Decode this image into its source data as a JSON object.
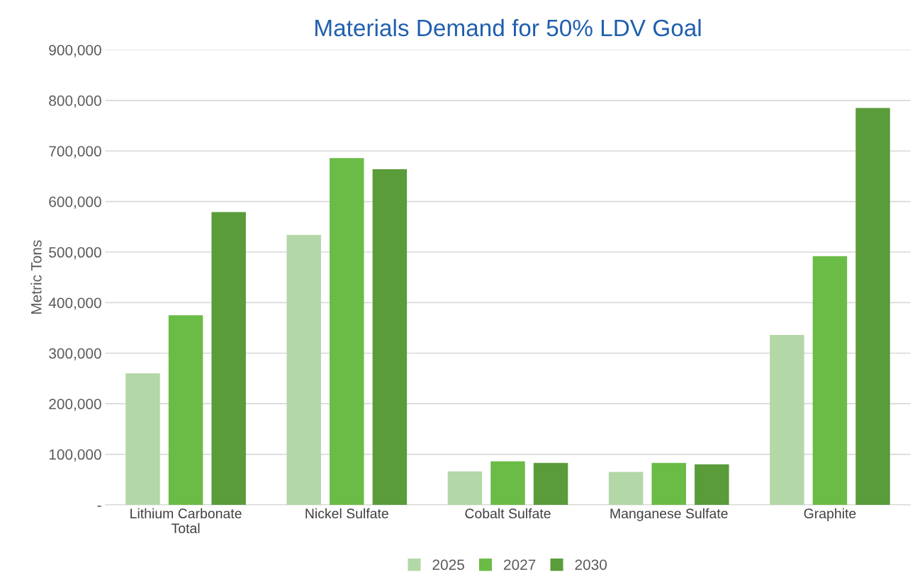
{
  "chart_data": {
    "type": "bar",
    "title": "Materials Demand for 50% LDV Goal",
    "ylabel": "Metric Tons",
    "categories": [
      "Lithium Carbonate\nTotal",
      "Nickel Sulfate",
      "Cobalt Sulfate",
      "Manganese Sulfate",
      "Graphite"
    ],
    "series": [
      {
        "name": "2025",
        "color": "#b3d7a7",
        "values": [
          260000,
          534000,
          66000,
          65000,
          336000
        ]
      },
      {
        "name": "2027",
        "color": "#6bbb47",
        "values": [
          375000,
          686000,
          86000,
          83000,
          492000
        ]
      },
      {
        "name": "2030",
        "color": "#5a9b3a",
        "values": [
          579000,
          664000,
          83000,
          80000,
          785000
        ]
      }
    ],
    "ylim": [
      0,
      900000
    ],
    "yticks": [
      {
        "value": 0,
        "label": "-"
      },
      {
        "value": 100000,
        "label": "100,000"
      },
      {
        "value": 200000,
        "label": "200,000"
      },
      {
        "value": 300000,
        "label": "300,000"
      },
      {
        "value": 400000,
        "label": "400,000"
      },
      {
        "value": 500000,
        "label": "500,000"
      },
      {
        "value": 600000,
        "label": "600,000"
      },
      {
        "value": 700000,
        "label": "700,000"
      },
      {
        "value": 800000,
        "label": "800,000"
      },
      {
        "value": 900000,
        "label": "900,000"
      }
    ],
    "grid": "y",
    "legend": "bottom"
  }
}
